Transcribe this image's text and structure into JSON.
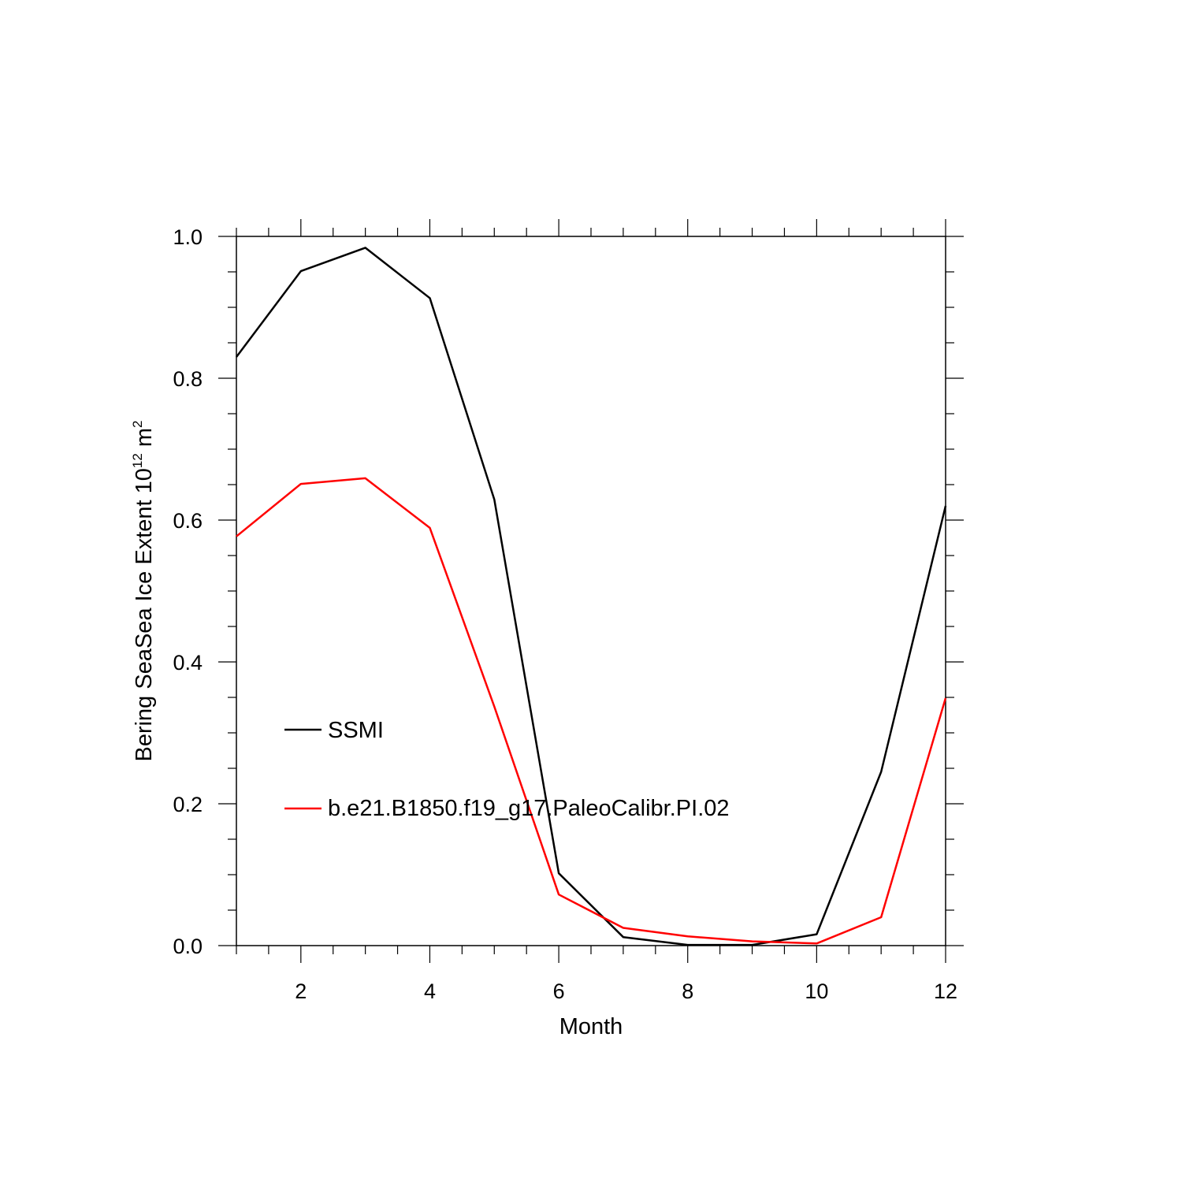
{
  "chart_data": {
    "type": "line",
    "xlabel": "Month",
    "ylabel": {
      "prefix": "Bering SeaSea Ice Extent 10",
      "exp1": "12",
      "mid": " m",
      "exp2": "2"
    },
    "xlim": [
      1,
      12
    ],
    "ylim": [
      0,
      1.0
    ],
    "x_ticks": [
      2,
      4,
      6,
      8,
      10,
      12
    ],
    "y_ticks": [
      0.0,
      0.2,
      0.4,
      0.6,
      0.8,
      1.0
    ],
    "y_tick_labels": [
      "0.0",
      "0.2",
      "0.4",
      "0.6",
      "0.8",
      "1.0"
    ],
    "x": [
      1,
      2,
      3,
      4,
      5,
      6,
      7,
      8,
      9,
      10,
      11,
      12
    ],
    "grid": false,
    "legend_placement": "lower-left",
    "series": [
      {
        "name": "SSMI",
        "color": "#000000",
        "values": [
          0.83,
          0.951,
          0.984,
          0.913,
          0.629,
          0.102,
          0.012,
          0.001,
          0.001,
          0.016,
          0.245,
          0.62
        ]
      },
      {
        "name": "b.e21.B1850.f19_g17.PaleoCalibr.PI.02",
        "color": "#ff0000",
        "values": [
          0.577,
          0.651,
          0.659,
          0.589,
          0.337,
          0.072,
          0.025,
          0.013,
          0.006,
          0.003,
          0.04,
          0.349
        ]
      }
    ]
  }
}
